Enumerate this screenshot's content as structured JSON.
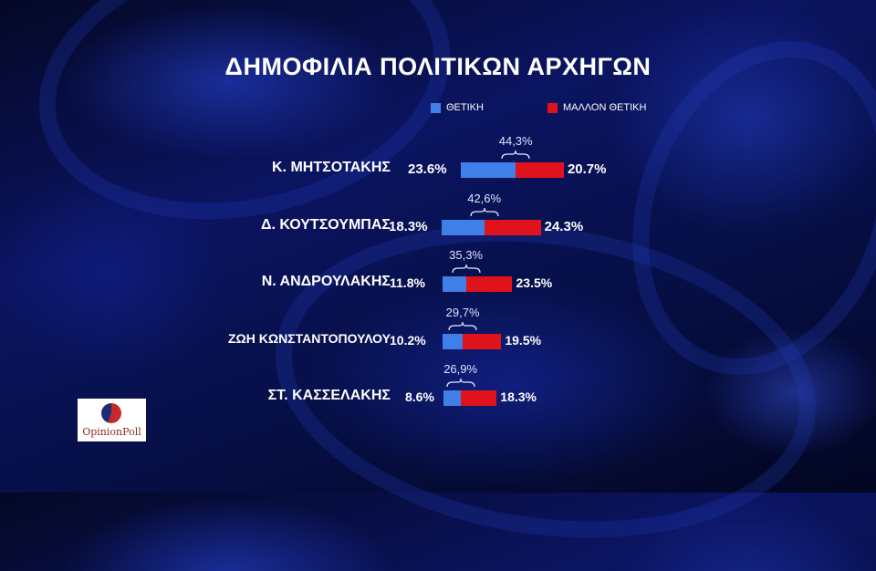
{
  "title": "ΔΗΜΟΦΙΛΙΑ ΠΟΛΙΤΙΚΩΝ ΑΡΧΗΓΩΝ",
  "legend": [
    {
      "label": "ΘΕΤΙΚΗ",
      "color": "#3f7fe8"
    },
    {
      "label": "ΜΑΛΛΟΝ ΘΕΤΙΚΗ",
      "color": "#e0121b"
    }
  ],
  "logo_text": "OpinionPoll",
  "chart_data": {
    "type": "bar",
    "orientation": "horizontal-stacked",
    "title": "ΔΗΜΟΦΙΛΙΑ ΠΟΛΙΤΙΚΩΝ ΑΡΧΗΓΩΝ",
    "categories": [
      "Κ. ΜΗΤΣΟΤΑΚΗΣ",
      "Δ. ΚΟΥΤΣΟΥΜΠΑΣ",
      "Ν. ΑΝΔΡΟΥΛΑΚΗΣ",
      "ΖΩΗ ΚΩΝΣΤΑΝΤΟΠΟΥΛΟΥ",
      "ΣΤ. ΚΑΣΣΕΛΑΚΗΣ"
    ],
    "series": [
      {
        "name": "ΘΕΤΙΚΗ",
        "values": [
          23.6,
          18.3,
          11.8,
          10.2,
          8.6
        ],
        "labels": [
          "23.6%",
          "18.3%",
          "11.8%",
          "10.2%",
          "8.6%"
        ],
        "color": "#3f7fe8"
      },
      {
        "name": "ΜΑΛΛΟΝ ΘΕΤΙΚΗ",
        "values": [
          20.7,
          24.3,
          23.5,
          19.5,
          18.3
        ],
        "labels": [
          "20.7%",
          "24.3%",
          "23.5%",
          "19.5%",
          "18.3%"
        ],
        "color": "#e0121b"
      }
    ],
    "totals": [
      "44,3%",
      "42,6%",
      "35,3%",
      "29,7%",
      "26,9%"
    ],
    "legend_position": "top",
    "grid": false
  }
}
